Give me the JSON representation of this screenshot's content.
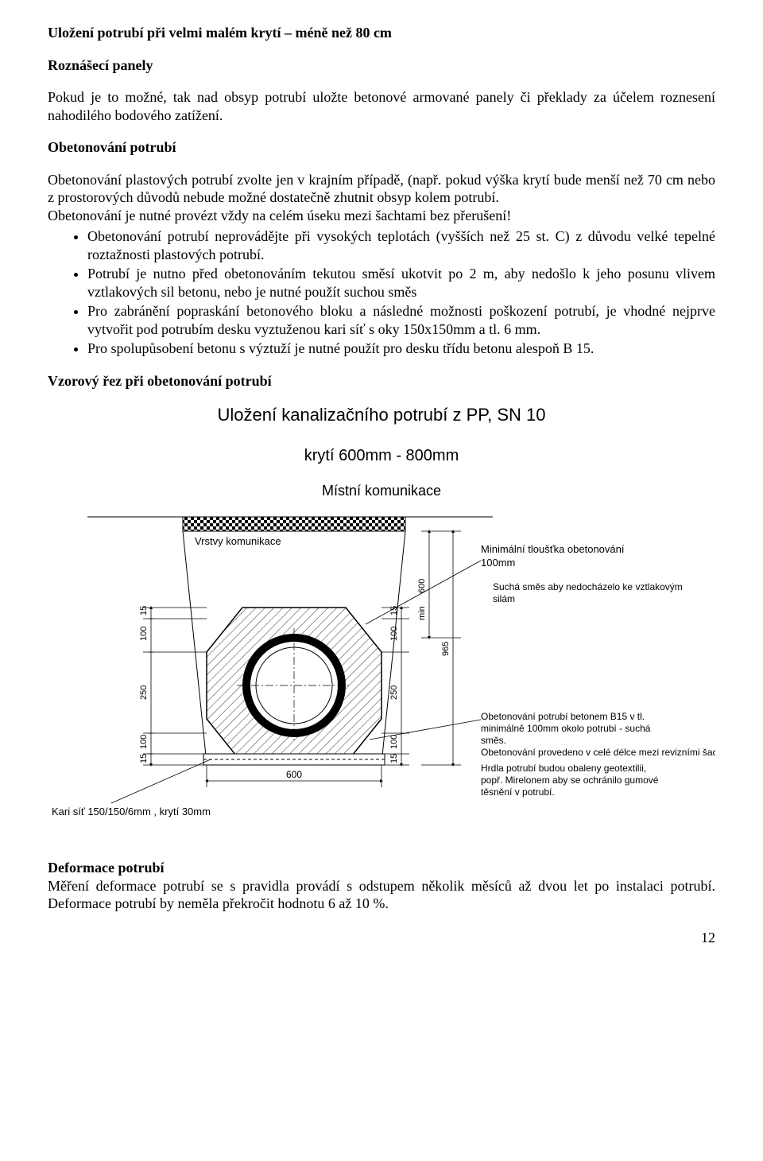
{
  "headings": {
    "main": "Uložení potrubí při velmi malém krytí – méně než 80 cm",
    "panels": "Roznášecí panely",
    "concrete": "Obetonování potrubí",
    "section_cut": "Vzorový řez při obetonování potrubí",
    "deform": "Deformace potrubí"
  },
  "paragraphs": {
    "panels": "Pokud je to možné, tak nad obsyp potrubí uložte betonové armované panely či překlady za účelem roznesení nahodilého bodového zatížení.",
    "concrete_intro": "Obetonování plastových potrubí zvolte jen v krajním případě, (např. pokud výška krytí bude menší než 70 cm nebo z prostorových důvodů nebude možné dostatečně zhutnit obsyp kolem potrubí.",
    "concrete_continuous": "Obetonování je nutné provézt vždy na celém úseku mezi šachtami bez přerušení!",
    "deform": "Měření deformace potrubí se s pravidla provádí s odstupem několik měsíců až dvou let po instalaci potrubí. Deformace potrubí by neměla překročit hodnotu 6 až 10 %."
  },
  "bullets": {
    "b1": "Obetonování potrubí neprovádějte při vysokých teplotách (vyšších než 25 st. C) z důvodu velké tepelné roztažnosti plastových potrubí.",
    "b2": "Potrubí je nutno před obetonováním tekutou směsí ukotvit po 2 m, aby nedošlo k jeho posunu vlivem vztlakových sil betonu, nebo je nutné použít suchou směs",
    "b3": "Pro zabránění popraskání betonového bloku a následné možnosti poškození potrubí, je vhodné nejprve vytvořit pod potrubím desku vyztuženou kari síť s oky 150x150mm a tl. 6 mm.",
    "b4": "Pro spolupůsobení betonu s výztuží je nutné použít pro desku třídu betonu alespoň B 15."
  },
  "diagram": {
    "title": "Uložení kanalizačního potrubí z PP, SN 10",
    "subtitle": "krytí 600mm  -  800mm",
    "road_label": "Místní komunikace",
    "layers_label": "Vrstvy komunikace",
    "min_thick_label": "Minimální tloušťka obetonování",
    "min_thick_val": "100mm",
    "dry_mix": "Suchá směs aby nedocházelo ke vztlakovým silám",
    "note1": "Obetonování potrubí betonem B15  v tl. minimálně 100mm okolo potrubí - suchá směs.",
    "note2": "Obetonování provedeno v celé délce mezi revizními šachtami.",
    "note3": "Hrdla potrubí budou obaleny geotextilii, popř. Mirelonem aby se ochránilo gumové těsnění v potrubí.",
    "kari_label": "Kari síť 150/150/6mm , krytí 30mm",
    "dims": {
      "d15a": "15",
      "d100": "100",
      "d250": "250",
      "d15b": "15",
      "r15a": "15",
      "r100": "100",
      "r250": "250",
      "r15b": "15",
      "d600min": "600",
      "dmin": "min",
      "d965": "965",
      "w600": "600"
    },
    "colors": {
      "line": "#000000",
      "bg": "#ffffff",
      "hatch": "#000000"
    },
    "fontsize": {
      "label": 13,
      "dim": 11
    }
  },
  "page_number": "12"
}
